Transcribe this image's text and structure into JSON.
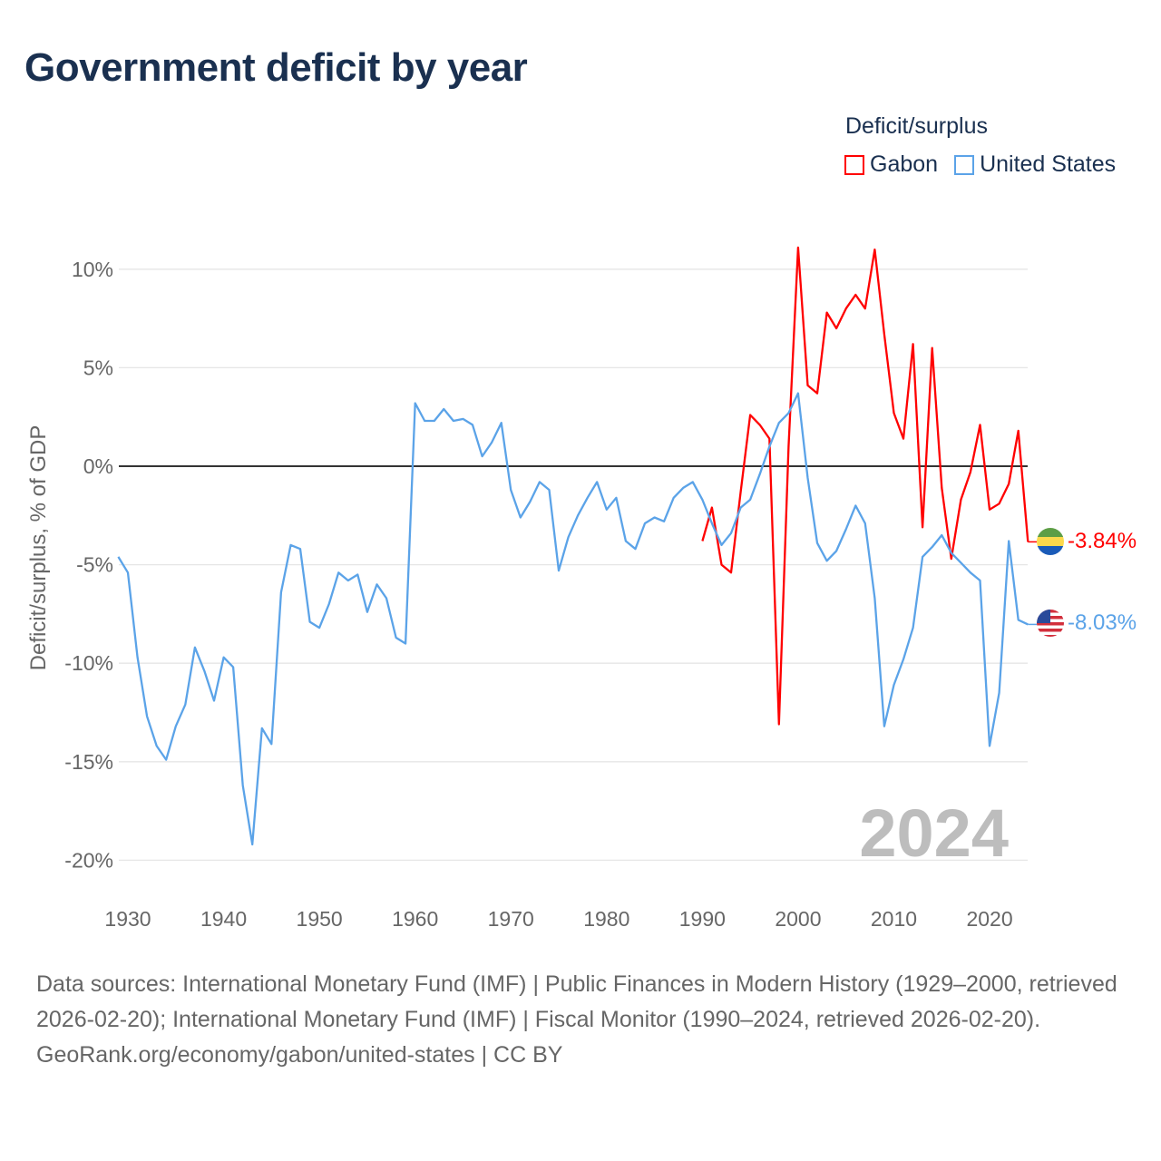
{
  "title": "Government deficit by year",
  "legend": {
    "title": "Deficit/surplus",
    "items": [
      {
        "label": "Gabon",
        "color": "#ff0000"
      },
      {
        "label": "United States",
        "color": "#5ba3e8"
      }
    ]
  },
  "year_watermark": "2024",
  "end_labels": {
    "gabon": "-3.84%",
    "us": "-8.03%"
  },
  "footer": {
    "sources": "Data sources: International Monetary Fund (IMF) | Public Finances in Modern History (1929–2000, retrieved 2026-02-20); International Monetary Fund (IMF) | Fiscal Monitor (1990–2024, retrieved 2026-02-20).",
    "attribution": "GeoRank.org/economy/gabon/united-states | CC BY"
  },
  "chart_data": {
    "type": "line",
    "title": "Government deficit by year",
    "xlabel": "",
    "ylabel": "Deficit/surplus, % of GDP",
    "xlim": [
      1929,
      2024
    ],
    "ylim": [
      -20,
      10
    ],
    "xticks": [
      1930,
      1940,
      1950,
      1960,
      1970,
      1980,
      1990,
      2000,
      2010,
      2020
    ],
    "yticks": [
      10,
      5,
      0,
      -5,
      -10,
      -15,
      -20
    ],
    "ytick_labels": [
      "10%",
      "5%",
      "0%",
      "-5%",
      "-10%",
      "-15%",
      "-20%"
    ],
    "grid": true,
    "legend_position": "top-right",
    "series": [
      {
        "name": "Gabon",
        "color": "#ff0000",
        "start_year": 1990,
        "values": [
          -3.8,
          -2.1,
          -5.0,
          -5.4,
          -1.3,
          2.6,
          2.1,
          1.4,
          -13.1,
          1.0,
          11.1,
          4.1,
          3.7,
          7.8,
          7.0,
          8.0,
          8.7,
          8.0,
          11.0,
          6.7,
          2.7,
          1.4,
          6.2,
          -3.1,
          6.0,
          -1.1,
          -4.7,
          -1.7,
          -0.3,
          2.1,
          -2.2,
          -1.9,
          -0.9,
          1.8,
          -3.84
        ]
      },
      {
        "name": "United States",
        "color": "#5ba3e8",
        "start_year": 1929,
        "values": [
          -4.6,
          -5.4,
          -9.7,
          -12.7,
          -14.2,
          -14.9,
          -13.2,
          -12.1,
          -9.2,
          -10.4,
          -11.9,
          -9.7,
          -10.2,
          -16.2,
          -19.2,
          -13.3,
          -14.1,
          -6.4,
          -4.0,
          -4.2,
          -7.9,
          -8.2,
          -7.0,
          -5.4,
          -5.8,
          -5.5,
          -7.4,
          -6.0,
          -6.7,
          -8.7,
          -9.0,
          3.2,
          2.3,
          2.3,
          2.9,
          2.3,
          2.4,
          2.1,
          0.5,
          1.2,
          2.2,
          -1.2,
          -2.6,
          -1.8,
          -0.8,
          -1.2,
          -5.3,
          -3.6,
          -2.5,
          -1.6,
          -0.8,
          -2.2,
          -1.6,
          -3.8,
          -4.2,
          -2.9,
          -2.6,
          -2.8,
          -1.6,
          -1.1,
          -0.8,
          -1.7,
          -2.9,
          -4.0,
          -3.4,
          -2.1,
          -1.7,
          -0.4,
          1.0,
          2.2,
          2.7,
          3.7,
          -0.6,
          -3.9,
          -4.8,
          -4.3,
          -3.2,
          -2.0,
          -2.9,
          -6.7,
          -13.2,
          -11.1,
          -9.8,
          -8.2,
          -4.6,
          -4.1,
          -3.5,
          -4.4,
          -4.9,
          -5.4,
          -5.8,
          -14.2,
          -11.5,
          -3.8,
          -7.8,
          -8.03
        ]
      }
    ]
  }
}
